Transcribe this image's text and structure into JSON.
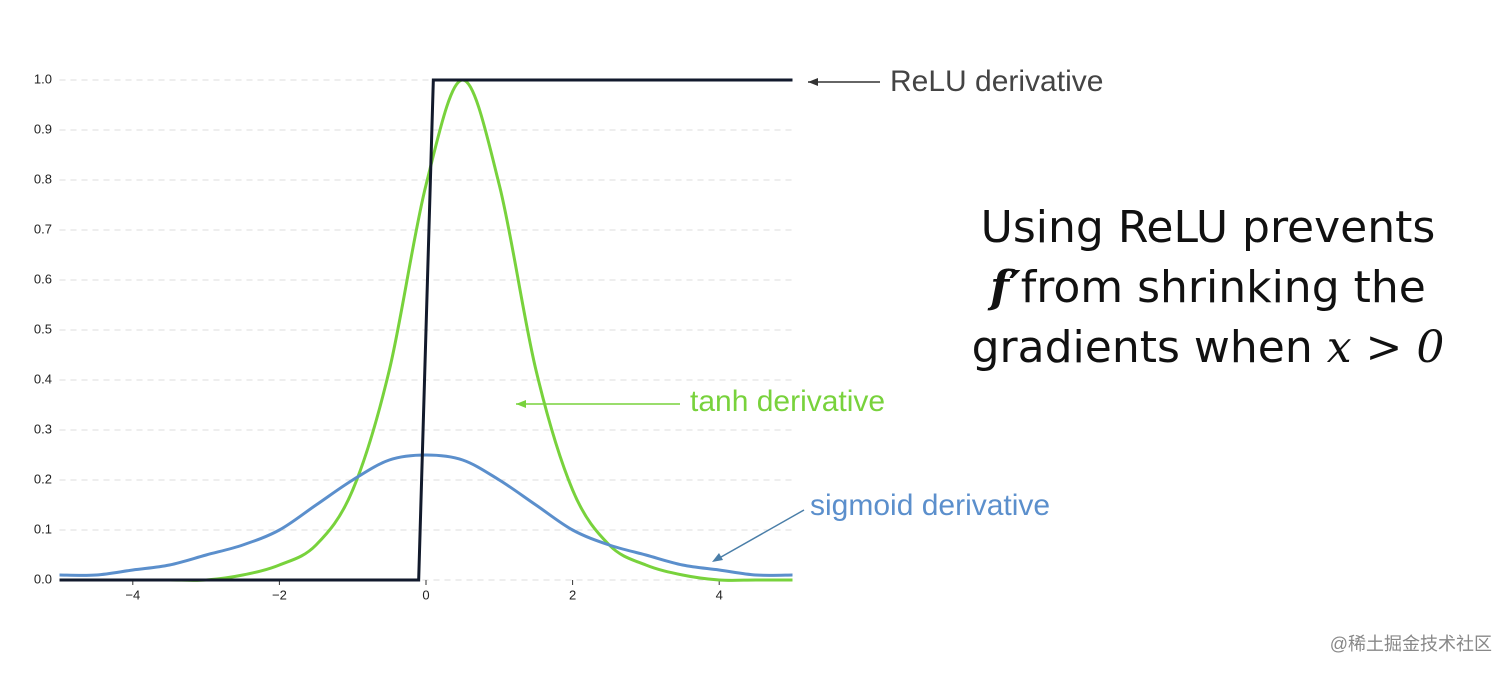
{
  "chart_data": {
    "type": "line",
    "x": [
      -5,
      -4.5,
      -4,
      -3.5,
      -3,
      -2.5,
      -2,
      -1.5,
      -1,
      -0.5,
      0,
      0.5,
      1,
      1.5,
      2,
      2.5,
      3,
      3.5,
      4,
      4.5,
      5
    ],
    "series": [
      {
        "name": "tanh derivative",
        "color": "#78d23c",
        "values": [
          0,
          0,
          0,
          0,
          0,
          0.01,
          0.03,
          0.07,
          0.18,
          0.42,
          0.79,
          1,
          0.79,
          0.42,
          0.18,
          0.07,
          0.03,
          0.01,
          0,
          0,
          0
        ]
      },
      {
        "name": "sigmoid derivative",
        "color": "#5b8fcc",
        "values": [
          0.01,
          0.01,
          0.02,
          0.03,
          0.05,
          0.07,
          0.1,
          0.15,
          0.2,
          0.24,
          0.25,
          0.24,
          0.2,
          0.15,
          0.1,
          0.07,
          0.05,
          0.03,
          0.02,
          0.01,
          0.01
        ]
      },
      {
        "name": "ReLU derivative",
        "color": "#121a2c",
        "x": [
          -5,
          -0.1,
          0.1,
          5
        ],
        "values": [
          0,
          0,
          1,
          1
        ]
      }
    ],
    "xlim": [
      -5,
      5
    ],
    "ylim": [
      0,
      1
    ],
    "xticks": [
      {
        "value": -4,
        "label": "−4"
      },
      {
        "value": -2,
        "label": "−2"
      },
      0,
      2,
      4
    ],
    "yticks": [
      {
        "value": 0,
        "label": "0.0"
      },
      0.1,
      0.2,
      0.3,
      0.4,
      0.5,
      0.6,
      0.7,
      0.8,
      0.9,
      {
        "value": 1,
        "label": "1.0"
      }
    ],
    "grid": true,
    "annotation": {
      "line1": "Using ReLU prevents",
      "f_prime": "f′",
      "line2": "from shrinking the",
      "line3": "gradients when ",
      "math": "x > 0"
    },
    "watermark": "@稀土掘金技术社区"
  }
}
